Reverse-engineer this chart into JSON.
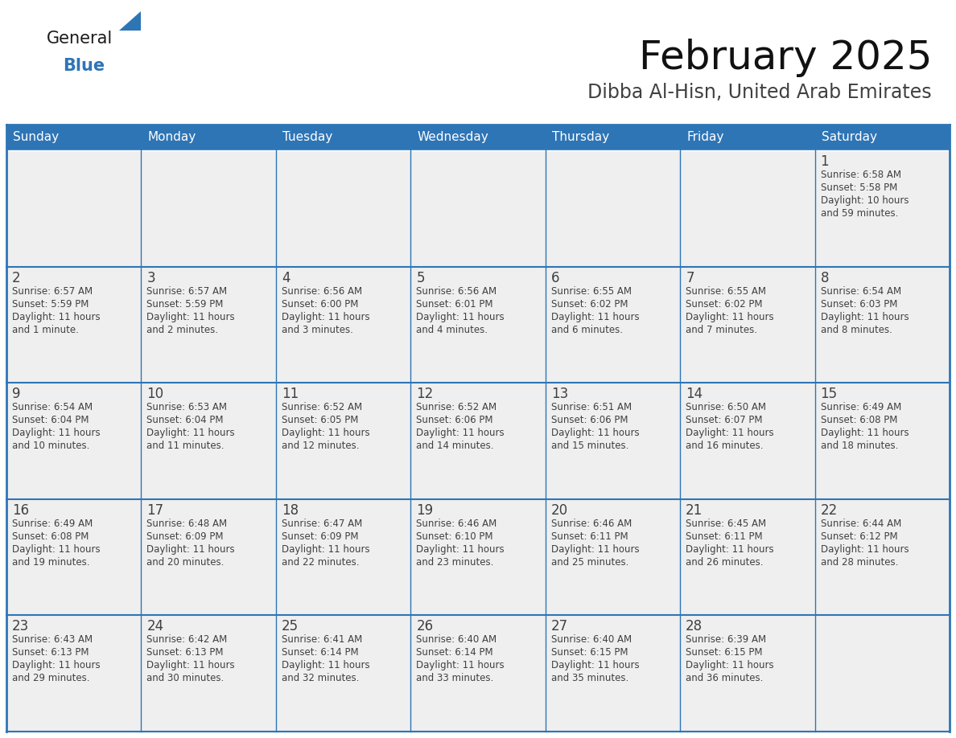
{
  "title": "February 2025",
  "subtitle": "Dibba Al-Hisn, United Arab Emirates",
  "days_of_week": [
    "Sunday",
    "Monday",
    "Tuesday",
    "Wednesday",
    "Thursday",
    "Friday",
    "Saturday"
  ],
  "header_bg": "#2E75B6",
  "header_text": "#FFFFFF",
  "cell_bg": "#EFEFEF",
  "cell_bg_white": "#FFFFFF",
  "border_color": "#2E75B6",
  "row_border_color": "#2E75B6",
  "text_color": "#404040",
  "title_color": "#111111",
  "subtitle_color": "#404040",
  "logo_general_color": "#1a1a1a",
  "logo_blue_color": "#2E75B6",
  "calendar_data": [
    [
      null,
      null,
      null,
      null,
      null,
      null,
      {
        "day": 1,
        "sunrise": "6:58 AM",
        "sunset": "5:58 PM",
        "daylight": "10 hours",
        "daylight2": "and 59 minutes."
      }
    ],
    [
      {
        "day": 2,
        "sunrise": "6:57 AM",
        "sunset": "5:59 PM",
        "daylight": "11 hours",
        "daylight2": "and 1 minute."
      },
      {
        "day": 3,
        "sunrise": "6:57 AM",
        "sunset": "5:59 PM",
        "daylight": "11 hours",
        "daylight2": "and 2 minutes."
      },
      {
        "day": 4,
        "sunrise": "6:56 AM",
        "sunset": "6:00 PM",
        "daylight": "11 hours",
        "daylight2": "and 3 minutes."
      },
      {
        "day": 5,
        "sunrise": "6:56 AM",
        "sunset": "6:01 PM",
        "daylight": "11 hours",
        "daylight2": "and 4 minutes."
      },
      {
        "day": 6,
        "sunrise": "6:55 AM",
        "sunset": "6:02 PM",
        "daylight": "11 hours",
        "daylight2": "and 6 minutes."
      },
      {
        "day": 7,
        "sunrise": "6:55 AM",
        "sunset": "6:02 PM",
        "daylight": "11 hours",
        "daylight2": "and 7 minutes."
      },
      {
        "day": 8,
        "sunrise": "6:54 AM",
        "sunset": "6:03 PM",
        "daylight": "11 hours",
        "daylight2": "and 8 minutes."
      }
    ],
    [
      {
        "day": 9,
        "sunrise": "6:54 AM",
        "sunset": "6:04 PM",
        "daylight": "11 hours",
        "daylight2": "and 10 minutes."
      },
      {
        "day": 10,
        "sunrise": "6:53 AM",
        "sunset": "6:04 PM",
        "daylight": "11 hours",
        "daylight2": "and 11 minutes."
      },
      {
        "day": 11,
        "sunrise": "6:52 AM",
        "sunset": "6:05 PM",
        "daylight": "11 hours",
        "daylight2": "and 12 minutes."
      },
      {
        "day": 12,
        "sunrise": "6:52 AM",
        "sunset": "6:06 PM",
        "daylight": "11 hours",
        "daylight2": "and 14 minutes."
      },
      {
        "day": 13,
        "sunrise": "6:51 AM",
        "sunset": "6:06 PM",
        "daylight": "11 hours",
        "daylight2": "and 15 minutes."
      },
      {
        "day": 14,
        "sunrise": "6:50 AM",
        "sunset": "6:07 PM",
        "daylight": "11 hours",
        "daylight2": "and 16 minutes."
      },
      {
        "day": 15,
        "sunrise": "6:49 AM",
        "sunset": "6:08 PM",
        "daylight": "11 hours",
        "daylight2": "and 18 minutes."
      }
    ],
    [
      {
        "day": 16,
        "sunrise": "6:49 AM",
        "sunset": "6:08 PM",
        "daylight": "11 hours",
        "daylight2": "and 19 minutes."
      },
      {
        "day": 17,
        "sunrise": "6:48 AM",
        "sunset": "6:09 PM",
        "daylight": "11 hours",
        "daylight2": "and 20 minutes."
      },
      {
        "day": 18,
        "sunrise": "6:47 AM",
        "sunset": "6:09 PM",
        "daylight": "11 hours",
        "daylight2": "and 22 minutes."
      },
      {
        "day": 19,
        "sunrise": "6:46 AM",
        "sunset": "6:10 PM",
        "daylight": "11 hours",
        "daylight2": "and 23 minutes."
      },
      {
        "day": 20,
        "sunrise": "6:46 AM",
        "sunset": "6:11 PM",
        "daylight": "11 hours",
        "daylight2": "and 25 minutes."
      },
      {
        "day": 21,
        "sunrise": "6:45 AM",
        "sunset": "6:11 PM",
        "daylight": "11 hours",
        "daylight2": "and 26 minutes."
      },
      {
        "day": 22,
        "sunrise": "6:44 AM",
        "sunset": "6:12 PM",
        "daylight": "11 hours",
        "daylight2": "and 28 minutes."
      }
    ],
    [
      {
        "day": 23,
        "sunrise": "6:43 AM",
        "sunset": "6:13 PM",
        "daylight": "11 hours",
        "daylight2": "and 29 minutes."
      },
      {
        "day": 24,
        "sunrise": "6:42 AM",
        "sunset": "6:13 PM",
        "daylight": "11 hours",
        "daylight2": "and 30 minutes."
      },
      {
        "day": 25,
        "sunrise": "6:41 AM",
        "sunset": "6:14 PM",
        "daylight": "11 hours",
        "daylight2": "and 32 minutes."
      },
      {
        "day": 26,
        "sunrise": "6:40 AM",
        "sunset": "6:14 PM",
        "daylight": "11 hours",
        "daylight2": "and 33 minutes."
      },
      {
        "day": 27,
        "sunrise": "6:40 AM",
        "sunset": "6:15 PM",
        "daylight": "11 hours",
        "daylight2": "and 35 minutes."
      },
      {
        "day": 28,
        "sunrise": "6:39 AM",
        "sunset": "6:15 PM",
        "daylight": "11 hours",
        "daylight2": "and 36 minutes."
      },
      null
    ]
  ]
}
